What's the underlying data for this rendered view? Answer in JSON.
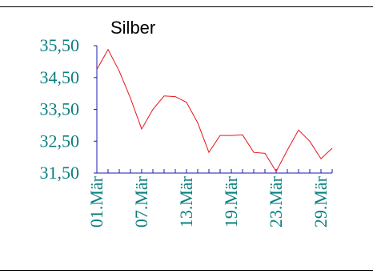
{
  "chart_data": {
    "type": "line",
    "title": "Silber",
    "xlabel": "",
    "ylabel": "",
    "ylim": [
      31.5,
      35.5
    ],
    "yticks": [
      "35,50",
      "34,50",
      "33,50",
      "32,50",
      "31,50"
    ],
    "ytick_values": [
      35.5,
      34.5,
      33.5,
      32.5,
      31.5
    ],
    "xtick_labels": [
      "01.Mär",
      "07.Mär",
      "13.Mär",
      "19.Mär",
      "23.Mär",
      "29.Mär"
    ],
    "xtick_indices": [
      0,
      4,
      8,
      12,
      16,
      20
    ],
    "x_count": 22,
    "grid": false,
    "legend": "none",
    "colors": {
      "line": "#e8141c",
      "axis": "#1b1bb0",
      "ticklabel": "#0a7f7f"
    },
    "series": [
      {
        "values": [
          34.75,
          35.38,
          34.7,
          33.85,
          32.88,
          33.5,
          33.92,
          33.9,
          33.72,
          33.08,
          32.15,
          32.68,
          32.68,
          32.7,
          32.15,
          32.12,
          31.55,
          32.22,
          32.85,
          32.5,
          31.95,
          32.28
        ]
      }
    ]
  }
}
